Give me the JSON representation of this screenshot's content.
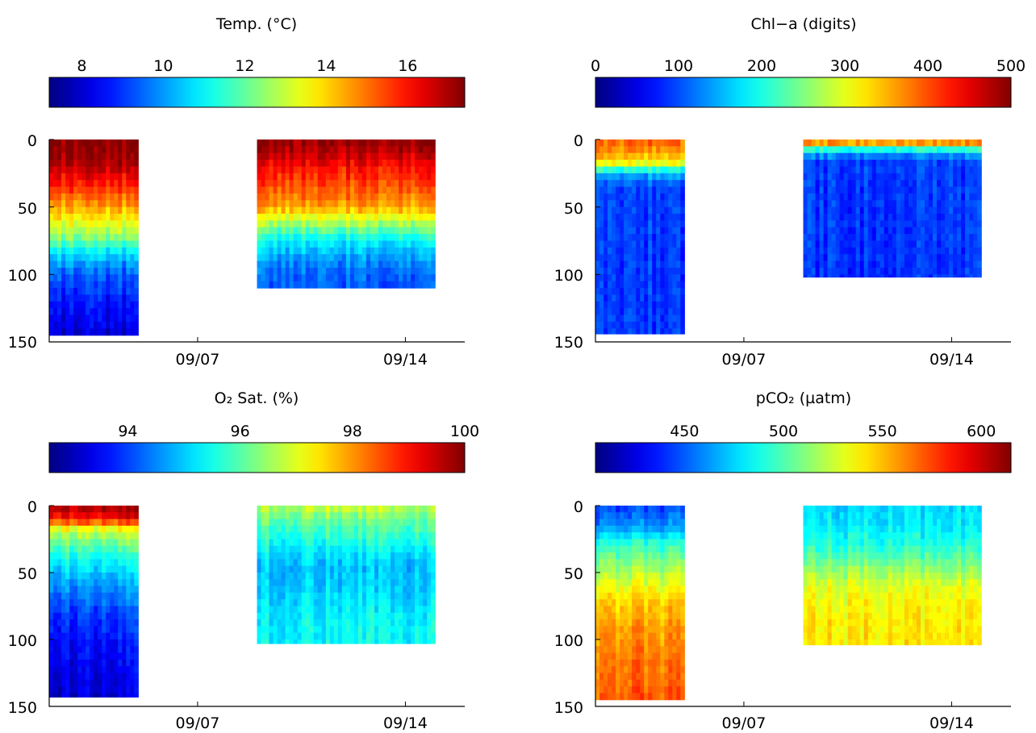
{
  "chart_data": [
    {
      "type": "heatmap",
      "title": "Temp. (°C)",
      "colorbar": {
        "min": 7.2,
        "max": 17.4,
        "ticks": [
          "8",
          "10",
          "12",
          "14",
          "16"
        ],
        "tick_values": [
          8,
          10,
          12,
          14,
          16
        ]
      },
      "yaxis": {
        "range": [
          0,
          150
        ],
        "reversed": true,
        "ticks": [
          "0",
          "50",
          "100",
          "150"
        ],
        "tick_values": [
          0,
          50,
          100,
          150
        ]
      },
      "xaxis": {
        "range": [
          "09/02",
          "09/16"
        ],
        "ticks": [
          "09/07",
          "09/14"
        ],
        "tick_values": [
          "09/07",
          "09/14"
        ]
      },
      "blocks": [
        {
          "start": "09/02",
          "end": "09/05",
          "bottom": 145,
          "profile": [
            [
              0,
              17.2
            ],
            [
              15,
              17.0
            ],
            [
              30,
              16.0
            ],
            [
              45,
              14.8
            ],
            [
              60,
              13.5
            ],
            [
              75,
              12.0
            ],
            [
              85,
              10.5
            ],
            [
              100,
              9.3
            ],
            [
              120,
              8.6
            ],
            [
              145,
              8.0
            ]
          ]
        },
        {
          "start": "09/09",
          "end": "09/15",
          "bottom": 110,
          "profile": [
            [
              0,
              17.2
            ],
            [
              10,
              16.8
            ],
            [
              20,
              16.0
            ],
            [
              35,
              15.3
            ],
            [
              50,
              14.5
            ],
            [
              60,
              13.0
            ],
            [
              70,
              11.5
            ],
            [
              80,
              10.5
            ],
            [
              95,
              9.6
            ],
            [
              110,
              9.3
            ]
          ]
        }
      ]
    },
    {
      "type": "heatmap",
      "title": "Chl−a (digits)",
      "colorbar": {
        "min": 0,
        "max": 500,
        "ticks": [
          "0",
          "100",
          "200",
          "300",
          "400",
          "500"
        ],
        "tick_values": [
          0,
          100,
          200,
          300,
          400,
          500
        ]
      },
      "yaxis": {
        "range": [
          0,
          150
        ],
        "reversed": true,
        "ticks": [
          "0",
          "50",
          "100",
          "150"
        ],
        "tick_values": [
          0,
          50,
          100,
          150
        ]
      },
      "xaxis": {
        "range": [
          "09/02",
          "09/16"
        ],
        "ticks": [
          "09/07",
          "09/14"
        ],
        "tick_values": [
          "09/07",
          "09/14"
        ]
      },
      "blocks": [
        {
          "start": "09/02",
          "end": "09/05",
          "bottom": 144,
          "profile": [
            [
              0,
              390
            ],
            [
              10,
              360
            ],
            [
              18,
              300
            ],
            [
              25,
              150
            ],
            [
              35,
              95
            ],
            [
              60,
              90
            ],
            [
              100,
              88
            ],
            [
              144,
              88
            ]
          ]
        },
        {
          "start": "09/09",
          "end": "09/15",
          "bottom": 102,
          "profile": [
            [
              0,
              400
            ],
            [
              4,
              340
            ],
            [
              8,
              180
            ],
            [
              15,
              95
            ],
            [
              40,
              90
            ],
            [
              102,
              88
            ]
          ]
        }
      ]
    },
    {
      "type": "heatmap",
      "title": "O₂ Sat. (%)",
      "colorbar": {
        "min": 92.6,
        "max": 100,
        "ticks": [
          "94",
          "96",
          "98",
          "100"
        ],
        "tick_values": [
          94,
          96,
          98,
          100
        ]
      },
      "yaxis": {
        "range": [
          0,
          150
        ],
        "reversed": true,
        "ticks": [
          "0",
          "50",
          "100",
          "150"
        ],
        "tick_values": [
          0,
          50,
          100,
          150
        ]
      },
      "xaxis": {
        "range": [
          "09/02",
          "09/16"
        ],
        "ticks": [
          "09/07",
          "09/14"
        ],
        "tick_values": [
          "09/07",
          "09/14"
        ]
      },
      "blocks": [
        {
          "start": "09/02",
          "end": "09/05",
          "bottom": 143,
          "profile": [
            [
              0,
              99.8
            ],
            [
              10,
              99.0
            ],
            [
              18,
              97.0
            ],
            [
              30,
              96.0
            ],
            [
              45,
              95.2
            ],
            [
              60,
              94.6
            ],
            [
              80,
              94.0
            ],
            [
              110,
              93.5
            ],
            [
              143,
              93.2
            ]
          ]
        },
        {
          "start": "09/09",
          "end": "09/15",
          "bottom": 103,
          "profile": [
            [
              0,
              96.8
            ],
            [
              10,
              96.2
            ],
            [
              25,
              95.6
            ],
            [
              45,
              94.9
            ],
            [
              60,
              95.0
            ],
            [
              80,
              95.3
            ],
            [
              103,
              95.4
            ]
          ]
        }
      ]
    },
    {
      "type": "heatmap",
      "title": "pCO₂ (µatm)",
      "colorbar": {
        "min": 405,
        "max": 615,
        "ticks": [
          "450",
          "500",
          "550",
          "600"
        ],
        "tick_values": [
          450,
          500,
          550,
          600
        ]
      },
      "yaxis": {
        "range": [
          0,
          150
        ],
        "reversed": true,
        "ticks": [
          "0",
          "50",
          "100",
          "150"
        ],
        "tick_values": [
          0,
          50,
          100,
          150
        ]
      },
      "xaxis": {
        "range": [
          "09/02",
          "09/16"
        ],
        "ticks": [
          "09/07",
          "09/14"
        ],
        "tick_values": [
          "09/07",
          "09/14"
        ]
      },
      "blocks": [
        {
          "start": "09/02",
          "end": "09/05",
          "bottom": 145,
          "profile": [
            [
              0,
              445
            ],
            [
              15,
              460
            ],
            [
              30,
              495
            ],
            [
              50,
              520
            ],
            [
              70,
              545
            ],
            [
              90,
              555
            ],
            [
              110,
              562
            ],
            [
              145,
              570
            ]
          ]
        },
        {
          "start": "09/09",
          "end": "09/15",
          "bottom": 104,
          "profile": [
            [
              0,
              475
            ],
            [
              15,
              480
            ],
            [
              30,
              490
            ],
            [
              45,
              510
            ],
            [
              60,
              530
            ],
            [
              80,
              538
            ],
            [
              104,
              540
            ]
          ]
        }
      ]
    }
  ]
}
